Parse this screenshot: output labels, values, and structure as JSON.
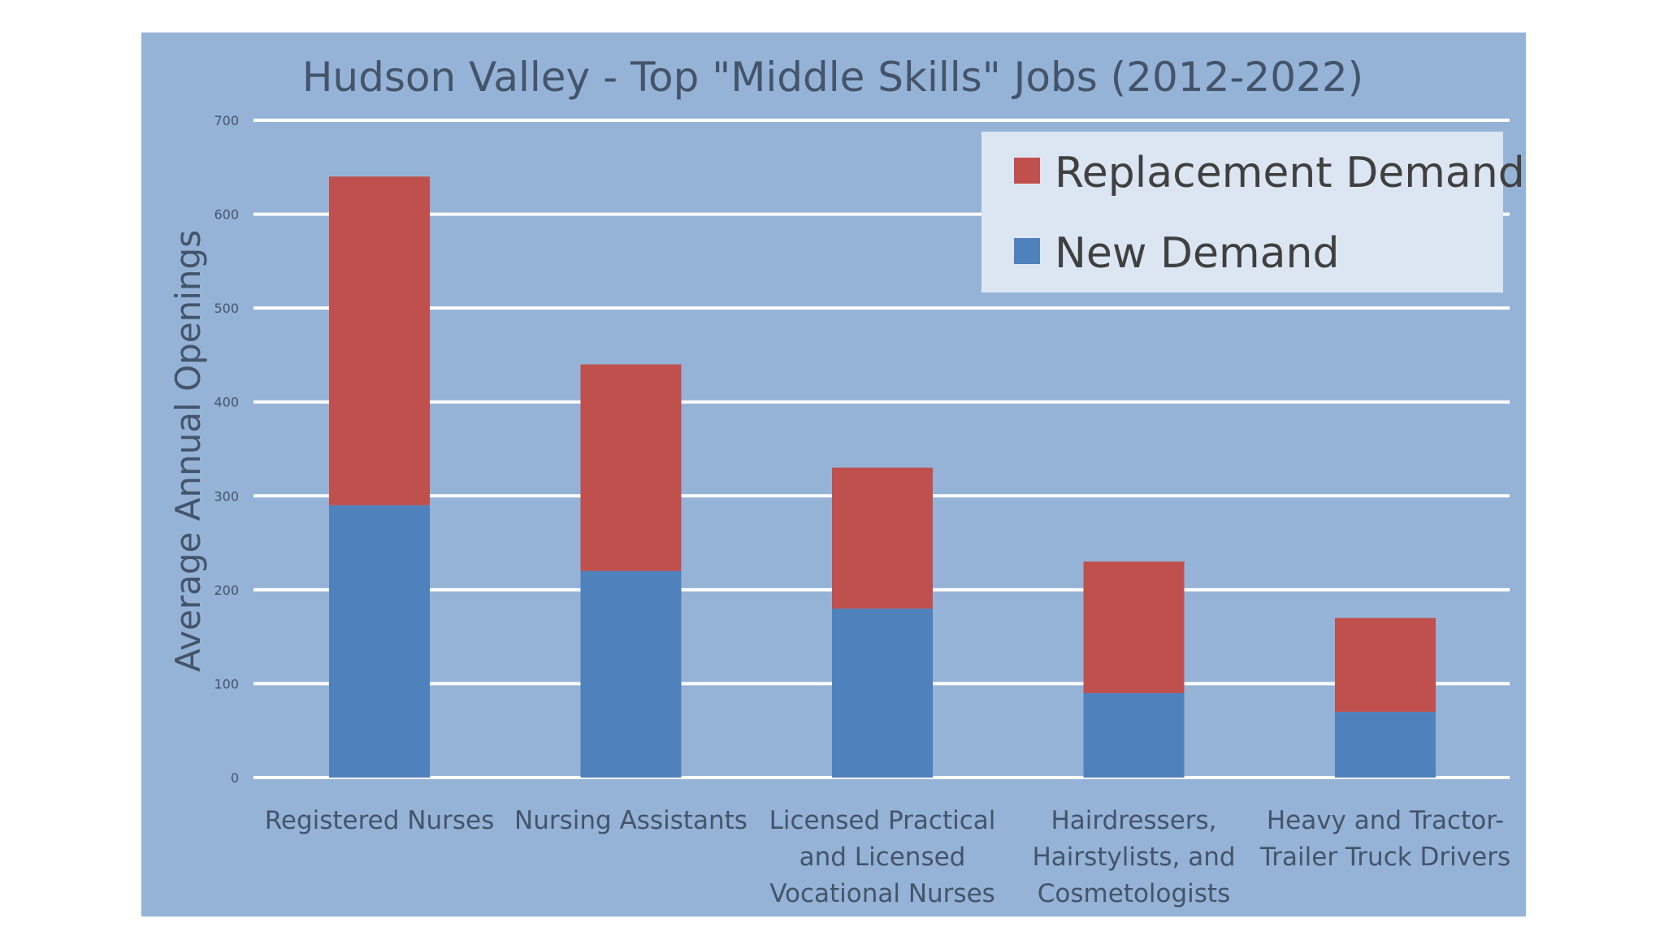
{
  "chart_data": {
    "type": "bar",
    "stacked": true,
    "title": "Hudson Valley - Top \"Middle Skills\" Jobs (2012-2022)",
    "xlabel": "",
    "ylabel": "Average Annual Openings",
    "ylim": [
      0,
      700
    ],
    "yticks": [
      0,
      100,
      200,
      300,
      400,
      500,
      600,
      700
    ],
    "grid": true,
    "legend_position": "top-right",
    "categories": [
      [
        "Registered Nurses"
      ],
      [
        "Nursing Assistants"
      ],
      [
        "Licensed Practical",
        "and Licensed",
        "Vocational Nurses"
      ],
      [
        "Hairdressers,",
        "Hairstylists, and",
        "Cosmetologists"
      ],
      [
        "Heavy and Tractor-",
        "Trailer Truck Drivers"
      ]
    ],
    "series": [
      {
        "name": "New Demand",
        "color": "#4f81bd",
        "values": [
          290,
          220,
          180,
          90,
          70
        ]
      },
      {
        "name": "Replacement Demand",
        "color": "#c0504d",
        "values": [
          350,
          220,
          150,
          140,
          100
        ]
      }
    ],
    "legend_order": [
      "Replacement Demand",
      "New Demand"
    ],
    "colors": {
      "plot_background": "#95b3d7",
      "gridline": "#ffffff",
      "legend_background": "#dce6f2"
    }
  }
}
